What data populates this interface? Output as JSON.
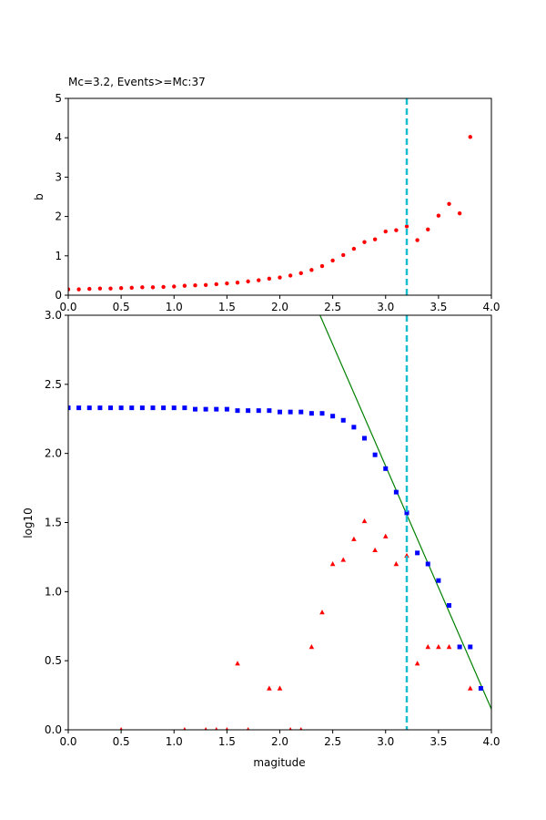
{
  "chart_data": [
    {
      "type": "scatter",
      "title": "Mc=3.2, Events>=Mc:37",
      "xlabel": "",
      "ylabel": "b",
      "xlim": [
        0,
        4
      ],
      "ylim": [
        0,
        5
      ],
      "xticks": [
        "0.0",
        "0.5",
        "1.0",
        "1.5",
        "2.0",
        "2.5",
        "3.0",
        "3.5",
        "4.0"
      ],
      "yticks": [
        "0",
        "1",
        "2",
        "3",
        "4",
        "5"
      ],
      "grid": false,
      "mc_line": {
        "x": 3.2,
        "color": "#17becf",
        "style": "dashed"
      },
      "series": [
        {
          "marker": "circle",
          "color": "#ff0000",
          "x": [
            0.0,
            0.1,
            0.2,
            0.3,
            0.4,
            0.5,
            0.6,
            0.7,
            0.8,
            0.9,
            1.0,
            1.1,
            1.2,
            1.3,
            1.4,
            1.5,
            1.6,
            1.7,
            1.8,
            1.9,
            2.0,
            2.1,
            2.2,
            2.3,
            2.4,
            2.5,
            2.6,
            2.7,
            2.8,
            2.9,
            3.0,
            3.1,
            3.2,
            3.3,
            3.4,
            3.5,
            3.6,
            3.7,
            3.8
          ],
          "y": [
            0.15,
            0.15,
            0.16,
            0.17,
            0.17,
            0.18,
            0.19,
            0.2,
            0.2,
            0.21,
            0.22,
            0.24,
            0.25,
            0.26,
            0.28,
            0.3,
            0.32,
            0.35,
            0.38,
            0.42,
            0.45,
            0.5,
            0.56,
            0.64,
            0.74,
            0.88,
            1.02,
            1.18,
            1.35,
            1.42,
            1.62,
            1.65,
            1.75,
            1.4,
            1.67,
            2.02,
            2.32,
            2.08,
            4.02
          ]
        }
      ]
    },
    {
      "type": "scatter",
      "title": "",
      "xlabel": "magitude",
      "ylabel": "log10",
      "xlim": [
        0,
        4
      ],
      "ylim": [
        0,
        3
      ],
      "xticks": [
        "0.0",
        "0.5",
        "1.0",
        "1.5",
        "2.0",
        "2.5",
        "3.0",
        "3.5",
        "4.0"
      ],
      "yticks": [
        "0.0",
        "0.5",
        "1.0",
        "1.5",
        "2.0",
        "2.5",
        "3.0"
      ],
      "grid": false,
      "mc_line": {
        "x": 3.2,
        "color": "#17becf",
        "style": "dashed"
      },
      "fit_line": {
        "color": "#008000",
        "points": [
          [
            2.38,
            3.0
          ],
          [
            4.0,
            0.15
          ]
        ]
      },
      "series": [
        {
          "marker": "square",
          "color": "#0000ff",
          "x": [
            0.0,
            0.1,
            0.2,
            0.3,
            0.4,
            0.5,
            0.6,
            0.7,
            0.8,
            0.9,
            1.0,
            1.1,
            1.2,
            1.3,
            1.4,
            1.5,
            1.6,
            1.7,
            1.8,
            1.9,
            2.0,
            2.1,
            2.2,
            2.3,
            2.4,
            2.5,
            2.6,
            2.7,
            2.8,
            2.9,
            3.0,
            3.1,
            3.2,
            3.3,
            3.4,
            3.5,
            3.6,
            3.7,
            3.8,
            3.9
          ],
          "y": [
            2.33,
            2.33,
            2.33,
            2.33,
            2.33,
            2.33,
            2.33,
            2.33,
            2.33,
            2.33,
            2.33,
            2.33,
            2.32,
            2.32,
            2.32,
            2.32,
            2.31,
            2.31,
            2.31,
            2.31,
            2.3,
            2.3,
            2.3,
            2.29,
            2.29,
            2.27,
            2.24,
            2.19,
            2.11,
            1.99,
            1.89,
            1.72,
            1.57,
            1.28,
            1.2,
            1.08,
            0.9,
            0.6,
            0.6,
            0.3
          ]
        },
        {
          "marker": "triangle",
          "color": "#ff0000",
          "x": [
            0.5,
            1.1,
            1.3,
            1.4,
            1.5,
            1.6,
            1.7,
            1.9,
            2.0,
            2.1,
            2.2,
            2.3,
            2.4,
            2.5,
            2.6,
            2.7,
            2.8,
            2.9,
            3.0,
            3.1,
            3.2,
            3.3,
            3.4,
            3.5,
            3.6,
            3.8
          ],
          "y": [
            0.0,
            0.0,
            0.0,
            0.0,
            0.0,
            0.48,
            0.0,
            0.3,
            0.3,
            0.0,
            0.0,
            0.6,
            0.85,
            1.2,
            1.23,
            1.38,
            1.51,
            1.3,
            1.4,
            1.2,
            1.26,
            0.48,
            0.6,
            0.6,
            0.6,
            0.3
          ]
        }
      ]
    }
  ]
}
